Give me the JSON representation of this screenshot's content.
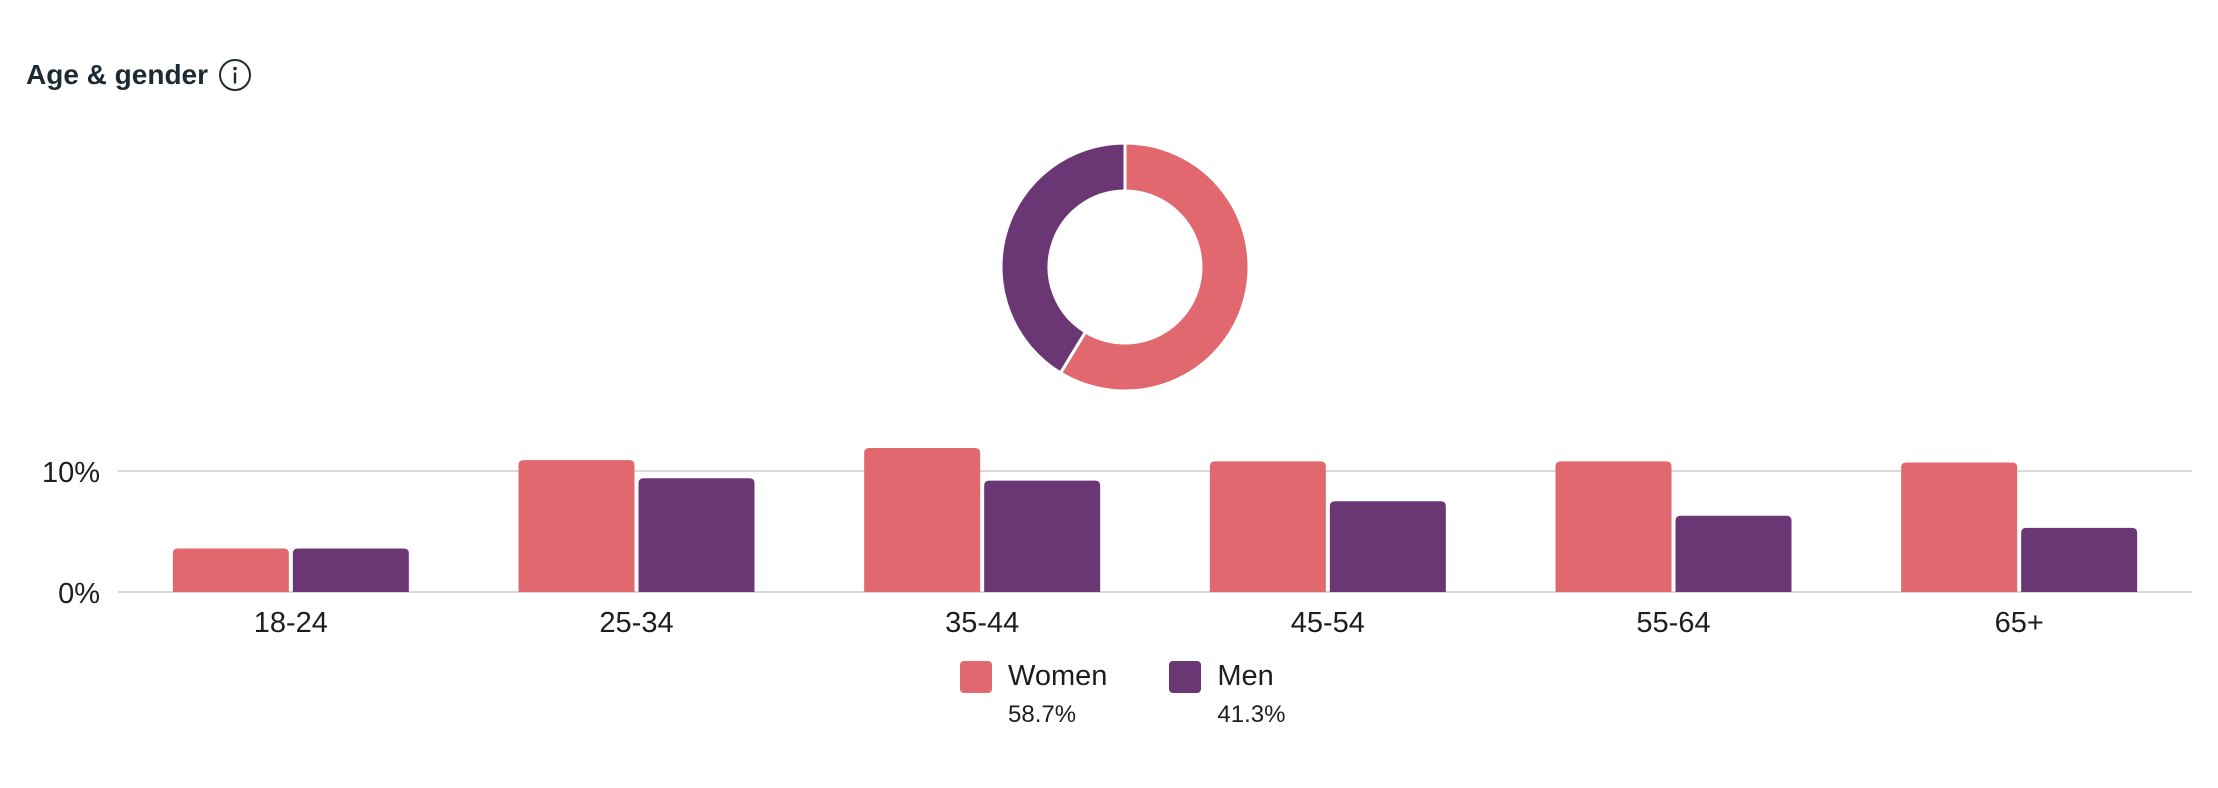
{
  "header": {
    "title": "Age & gender",
    "info_icon": "info-icon"
  },
  "colors": {
    "women": "#e0686e",
    "men": "#6b3674",
    "grid": "#d9d9d9",
    "text": "#1c1e21"
  },
  "legend": [
    {
      "name": "Women",
      "percent": "58.7%"
    },
    {
      "name": "Men",
      "percent": "41.3%"
    }
  ],
  "chart_data": [
    {
      "type": "pie",
      "variant": "donut",
      "labels": [
        "Women",
        "Men"
      ],
      "values": [
        58.7,
        41.3
      ]
    },
    {
      "type": "bar",
      "categories": [
        "18-24",
        "25-34",
        "35-44",
        "45-54",
        "55-64",
        "65+"
      ],
      "series": [
        {
          "name": "Women",
          "values": [
            3.6,
            10.9,
            11.9,
            10.8,
            10.8,
            10.7
          ]
        },
        {
          "name": "Men",
          "values": [
            3.6,
            9.4,
            9.2,
            7.5,
            6.3,
            5.3
          ]
        }
      ],
      "yticks": [
        "0%",
        "10%"
      ],
      "ylim": [
        0,
        14
      ],
      "grid": true,
      "legend_position": "bottom"
    }
  ]
}
